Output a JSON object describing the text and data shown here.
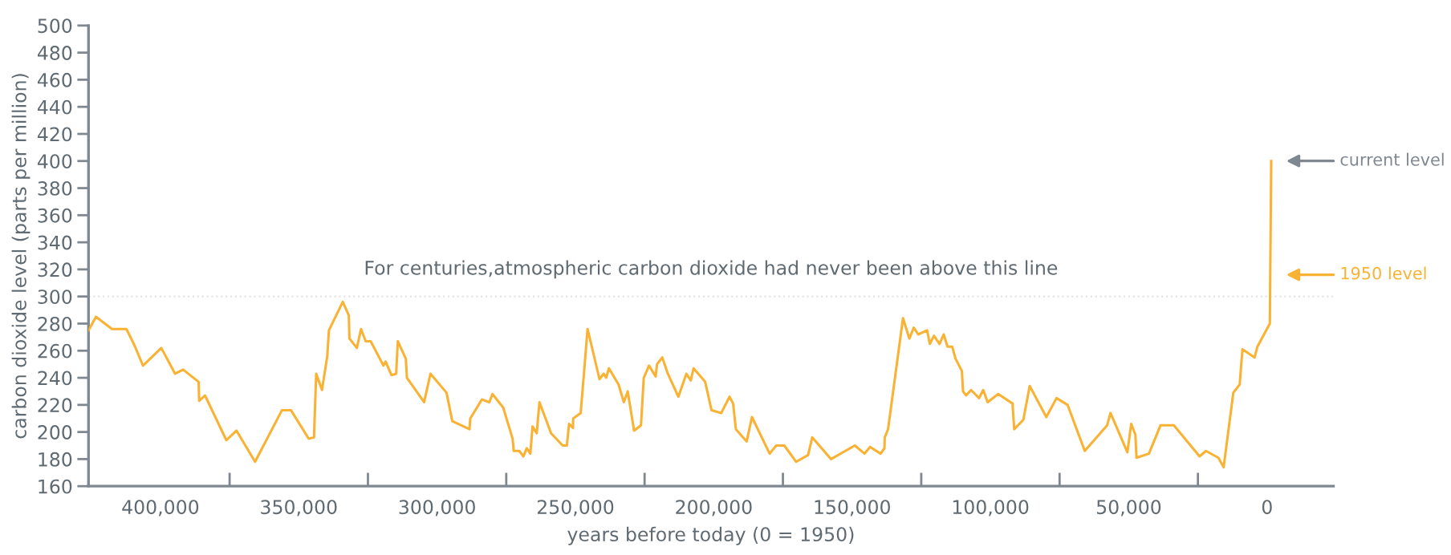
{
  "chart_data": {
    "type": "line",
    "xlabel": "years before today (0 = 1950)",
    "ylabel": "carbon dioxide level (parts per million)",
    "x": [
      426000,
      423300,
      417500,
      412300,
      409400,
      406300,
      399700,
      394700,
      391800,
      386200,
      386000,
      383900,
      376200,
      372500,
      365800,
      356100,
      352800,
      346400,
      344500,
      343700,
      341600,
      339700,
      339100,
      334100,
      331900,
      331700,
      329000,
      327500,
      325800,
      324000,
      319400,
      318600,
      316500,
      314800,
      314200,
      311300,
      310900,
      304700,
      302400,
      296600,
      294500,
      288300,
      288000,
      283800,
      281100,
      280000,
      276100,
      272700,
      272300,
      270300,
      268800,
      267600,
      266300,
      265500,
      264000,
      263000,
      258800,
      254600,
      253100,
      252300,
      250900,
      250800,
      248100,
      245600,
      241300,
      239800,
      238900,
      237900,
      234400,
      232500,
      231100,
      228800,
      226300,
      225300,
      223400,
      221000,
      220500,
      218600,
      216600,
      212800,
      209900,
      208300,
      207300,
      203100,
      200800,
      197300,
      194300,
      193000,
      192000,
      188100,
      186200,
      179800,
      177400,
      174500,
      170200,
      165900,
      164400,
      157600,
      149000,
      145500,
      143500,
      139700,
      138300,
      138200,
      137000,
      131600,
      129300,
      127700,
      126100,
      122900,
      121900,
      120400,
      118400,
      116900,
      115500,
      113800,
      112600,
      110300,
      109900,
      108800,
      107000,
      104100,
      102600,
      101000,
      97200,
      92000,
      91400,
      88100,
      85800,
      79800,
      76100,
      72100,
      65900,
      57800,
      56600,
      50500,
      49100,
      47600,
      47200,
      42700,
      38500,
      33700,
      24400,
      22100,
      17600,
      15700,
      12200,
      9900,
      8900,
      4500,
      3500,
      -1000,
      -1500
    ],
    "series": [
      {
        "color": "#f9b233",
        "values": [
          275,
          285,
          276,
          276,
          264,
          249,
          262,
          243,
          246,
          237,
          223,
          227,
          194,
          201,
          178,
          216,
          216,
          195,
          196,
          243,
          231,
          256,
          275,
          296,
          286,
          269,
          262,
          276,
          267,
          267,
          249,
          252,
          242,
          243,
          267,
          254,
          240,
          222,
          243,
          229,
          208,
          202,
          210,
          224,
          222,
          228,
          218,
          195,
          186,
          186,
          182,
          188,
          184,
          204,
          199,
          222,
          199,
          190,
          190,
          206,
          203,
          210,
          214,
          276,
          239,
          243,
          240,
          247,
          235,
          222,
          230,
          201,
          205,
          240,
          249,
          241,
          250,
          255,
          243,
          226,
          243,
          238,
          247,
          237,
          216,
          214,
          226,
          221,
          202,
          193,
          211,
          184,
          190,
          190,
          178,
          183,
          196,
          180,
          190,
          184,
          189,
          184,
          188,
          196,
          202,
          284,
          269,
          277,
          272,
          275,
          265,
          271,
          265,
          272,
          263,
          263,
          254,
          245,
          230,
          227,
          231,
          225,
          231,
          222,
          228,
          221,
          202,
          209,
          234,
          211,
          225,
          220,
          186,
          205,
          214,
          185,
          206,
          198,
          181,
          184,
          205,
          205,
          182,
          186,
          181,
          174,
          229,
          235,
          261,
          255,
          263,
          280,
          400
        ]
      }
    ],
    "xlim": [
      426000,
      -24000
    ],
    "xticks": [
      {
        "value": 400000,
        "label": "400,000"
      },
      {
        "value": 375000,
        "label": null
      },
      {
        "value": 350000,
        "label": "350,000"
      },
      {
        "value": 325000,
        "label": null
      },
      {
        "value": 300000,
        "label": "300,000"
      },
      {
        "value": 275000,
        "label": null
      },
      {
        "value": 250000,
        "label": "250,000"
      },
      {
        "value": 225000,
        "label": null
      },
      {
        "value": 200000,
        "label": "200,000"
      },
      {
        "value": 175000,
        "label": null
      },
      {
        "value": 150000,
        "label": "150,000"
      },
      {
        "value": 125000,
        "label": null
      },
      {
        "value": 100000,
        "label": "100,000"
      },
      {
        "value": 75000,
        "label": null
      },
      {
        "value": 50000,
        "label": "50,000"
      },
      {
        "value": 25000,
        "label": null
      },
      {
        "value": 0,
        "label": "0"
      }
    ],
    "ylim": [
      160,
      500
    ],
    "yticks": [
      160,
      180,
      200,
      220,
      240,
      260,
      280,
      300,
      320,
      340,
      360,
      380,
      400,
      420,
      440,
      460,
      480,
      500
    ],
    "ref_lines": [
      {
        "axis": "y",
        "value": 300,
        "label": "For centuries,atmospheric carbon dioxide had never been above this line",
        "color": "#e4e4e4",
        "line_style": "dotted"
      }
    ],
    "annotations": [
      "current level",
      "1950 level"
    ],
    "grid": false,
    "legend": false,
    "marker": "none",
    "line_style": "solid"
  }
}
